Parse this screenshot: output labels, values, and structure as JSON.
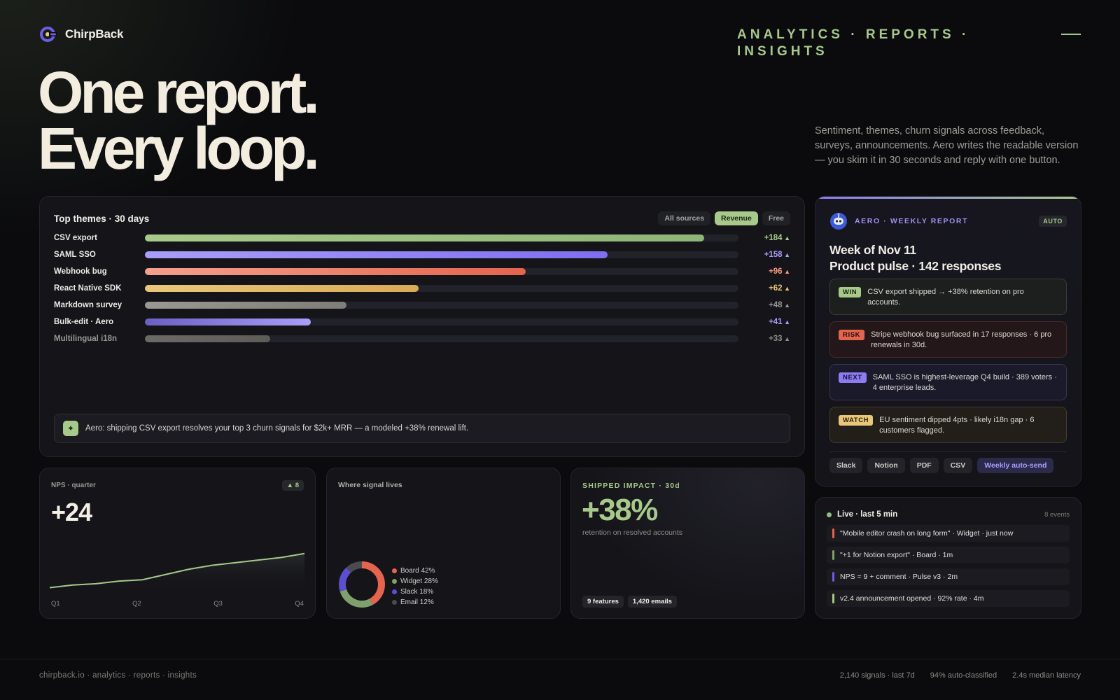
{
  "brand": {
    "name": "ChirpBack",
    "logo_icon": "chirpback-logo-icon"
  },
  "nav": {
    "tagline": "ANALYTICS · REPORTS · INSIGHTS",
    "menu_icon": "menu-line-icon"
  },
  "hero": {
    "line1": "One report.",
    "line2": "Every loop."
  },
  "intro": "Sentiment, themes, churn signals across feedback, surveys, announcements. Aero writes the readable version — you skim it in 30 seconds and reply with one button.",
  "themes": {
    "title": "Top themes · 30 days",
    "filters": [
      {
        "label": "All sources",
        "active": false
      },
      {
        "label": "Revenue",
        "active": true
      },
      {
        "label": "Free",
        "active": false
      }
    ],
    "rows": [
      {
        "label": "CSV export",
        "delta": "+184",
        "fill": 0.942,
        "color": "#a7c98a",
        "color2": "#8fb478",
        "delta_color": "#a7c98a",
        "dim": false
      },
      {
        "label": "SAML SSO",
        "delta": "+158",
        "fill": 0.78,
        "color": "#a99ef8",
        "color2": "#7d6ff0",
        "delta_color": "#a99ef8",
        "dim": false
      },
      {
        "label": "Webhook bug",
        "delta": "+96",
        "fill": 0.642,
        "color": "#f4a08c",
        "color2": "#e4644e",
        "delta_color": "#f29a86",
        "dim": false
      },
      {
        "label": "React Native SDK",
        "delta": "+62",
        "fill": 0.461,
        "color": "#e9c77a",
        "color2": "#d9ab55",
        "delta_color": "#e9c77a",
        "dim": false
      },
      {
        "label": "Markdown survey",
        "delta": "+48",
        "fill": 0.34,
        "color": "#9a9893",
        "color2": "#7f7d78",
        "delta_color": "#9a9893",
        "dim": false
      },
      {
        "label": "Bulk-edit · Aero",
        "delta": "+41",
        "fill": 0.28,
        "color": "#6b5fc4",
        "color2": "#a99ef8",
        "delta_color": "#a99ef8",
        "dim": false
      },
      {
        "label": "Multilingual i18n",
        "delta": "+33",
        "fill": 0.211,
        "color": "#6c6a66",
        "color2": "#5e5c58",
        "delta_color": "#8f8c86",
        "dim": true
      }
    ],
    "aero_note": {
      "icon": "sparkle-icon",
      "text": "Aero: shipping CSV export resolves your top 3 churn signals for $2k+ MRR — a modeled +38% renewal lift."
    }
  },
  "report": {
    "kicker": "AERO · WEEKLY REPORT",
    "badge": "AUTO",
    "avatar_icon": "aero-robot-icon",
    "title_line1": "Week of Nov 11",
    "title_line2": "Product pulse · 142 responses",
    "insights": [
      {
        "tag": "WIN",
        "text": "CSV export shipped → +38% retention on pro accounts.",
        "tag_bg": "#a7c98a",
        "tag_fg": "#1a2414",
        "bg": "#1d1f1f",
        "border": "#3a3c3b"
      },
      {
        "tag": "RISK",
        "text": "Stripe webhook bug surfaced in 17 responses · 6 pro renewals in 30d.",
        "tag_bg": "#e4644e",
        "tag_fg": "#1e0c08",
        "bg": "#241719",
        "border": "#4a2a2a"
      },
      {
        "tag": "NEXT",
        "text": "SAML SSO is highest-leverage Q4 build · 389 voters · 4 enterprise leads.",
        "tag_bg": "#8b7cf0",
        "tag_fg": "#15123a",
        "bg": "#1b1a2a",
        "border": "#38355a"
      },
      {
        "tag": "WATCH",
        "text": "EU sentiment dipped 4pts · likely i18n gap · 6 customers flagged.",
        "tag_bg": "#e9c77a",
        "tag_fg": "#2a200a",
        "bg": "#221e19",
        "border": "#453c2c"
      }
    ],
    "exports": [
      {
        "label": "Slack",
        "primary": false
      },
      {
        "label": "Notion",
        "primary": false
      },
      {
        "label": "PDF",
        "primary": false
      },
      {
        "label": "CSV",
        "primary": false
      },
      {
        "label": "Weekly auto-send",
        "primary": true
      }
    ]
  },
  "nps": {
    "kicker": "NPS · quarter",
    "badge": "▲ 8",
    "value": "+24",
    "quarters": [
      "Q1",
      "Q2",
      "Q3",
      "Q4"
    ],
    "line_color": "#a7c98a",
    "trend": [
      14,
      15,
      15.5,
      16.5,
      17,
      19,
      21,
      22.5,
      23.5,
      24.5,
      25.5,
      27
    ]
  },
  "signal": {
    "title": "Where signal lives",
    "slices": [
      {
        "label": "Board 42%",
        "value": 42,
        "color": "#e4644e"
      },
      {
        "label": "Widget 28%",
        "value": 28,
        "color": "#7f9f6c"
      },
      {
        "label": "Slack 18%",
        "value": 18,
        "color": "#5b4fcf"
      },
      {
        "label": "Email 12%",
        "value": 12,
        "color": "#4a4a50"
      }
    ]
  },
  "impact": {
    "kicker": "SHIPPED IMPACT · 30d",
    "value": "+38%",
    "sub": "retention on resolved accounts",
    "chips": [
      "9 features",
      "1,420 emails"
    ]
  },
  "live": {
    "title": "Live · last 5 min",
    "count": "8 events",
    "events": [
      {
        "text": "\"Mobile editor crash on long form\" · Widget · just now",
        "color": "#e4644e"
      },
      {
        "text": "\"+1 for Notion export\" · Board · 1m",
        "color": "#7f9f6c"
      },
      {
        "text": "NPS = 9 + comment · Pulse v3 · 2m",
        "color": "#6b5fe0"
      },
      {
        "text": "v2.4 announcement opened · 92% rate · 4m",
        "color": "#a7c98a"
      }
    ]
  },
  "footer": {
    "left": "chirpback.io · analytics · reports · insights",
    "stats": [
      "2,140 signals · last 7d",
      "94% auto-classified",
      "2.4s median latency"
    ]
  }
}
